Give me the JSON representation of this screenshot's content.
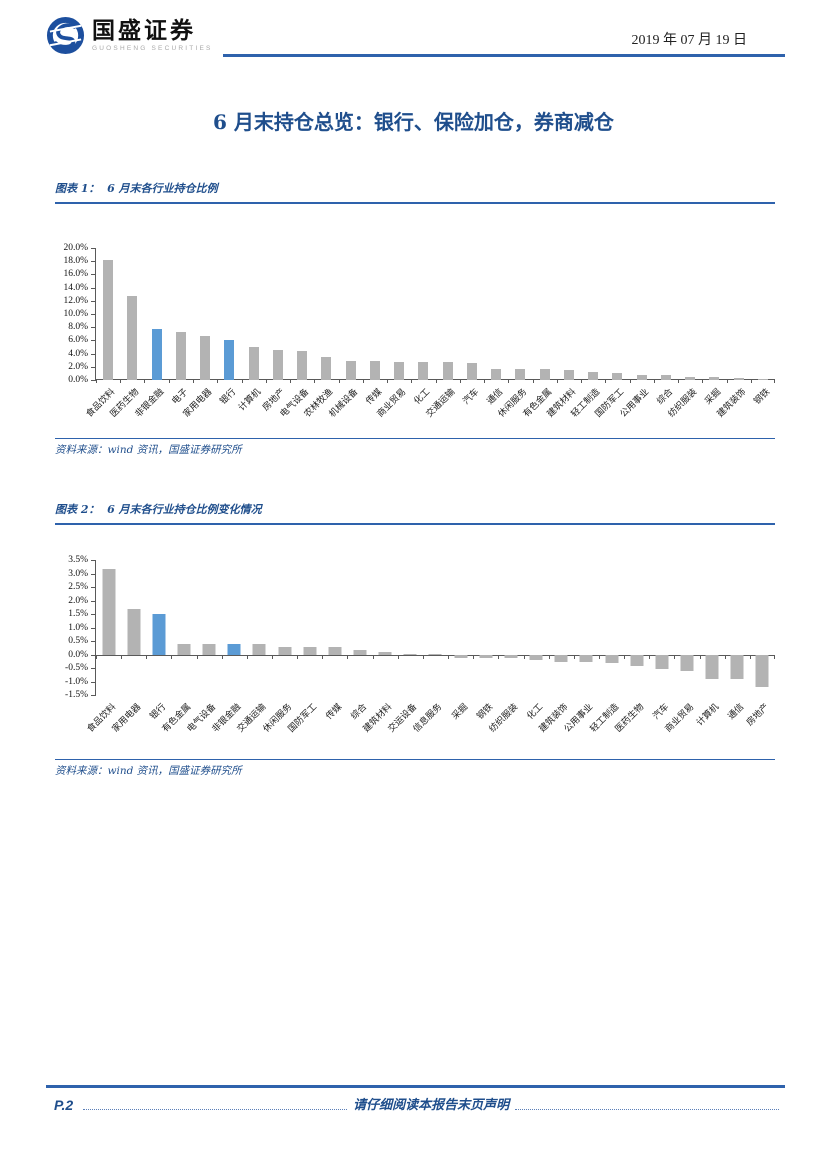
{
  "header": {
    "brand_cn": "国盛证券",
    "brand_en": "GUOSHENG SECURITIES",
    "date": "2019 年 07 月 19 日"
  },
  "title": "6 月末持仓总览：银行、保险加仓，券商减仓",
  "figure1": {
    "caption": "图表 1：  6 月末各行业持仓比例",
    "source": "资料来源：wind 资讯，国盛证券研究所"
  },
  "figure2": {
    "caption": "图表 2：  6 月末各行业持仓比例变化情况",
    "source": "资料来源：wind 资讯，国盛证券研究所"
  },
  "footer": {
    "page": "P.2",
    "disclaimer": "请仔细阅读本报告末页声明"
  },
  "colors": {
    "bar_gray": "#b3b3b3",
    "bar_blue": "#5b9bd5",
    "accent_blue": "#2e62ac",
    "text_blue": "#1f4e8c"
  },
  "chart_data": [
    {
      "type": "bar",
      "title": "6月末各行业持仓比例",
      "categories": [
        "食品饮料",
        "医药生物",
        "非银金融",
        "电子",
        "家用电器",
        "银行",
        "计算机",
        "房地产",
        "电气设备",
        "农林牧渔",
        "机械设备",
        "传媒",
        "商业贸易",
        "化工",
        "交通运输",
        "汽车",
        "通信",
        "休闲服务",
        "有色金属",
        "建筑材料",
        "轻工制造",
        "国防军工",
        "公用事业",
        "综合",
        "纺织服装",
        "采掘",
        "建筑装饰",
        "钢铁"
      ],
      "values": [
        18.2,
        12.7,
        7.8,
        7.2,
        6.7,
        6.0,
        5.0,
        4.6,
        4.4,
        3.5,
        2.9,
        2.9,
        2.8,
        2.8,
        2.7,
        2.5,
        1.7,
        1.6,
        1.6,
        1.5,
        1.2,
        1.1,
        0.8,
        0.7,
        0.5,
        0.4,
        0.3,
        0.2
      ],
      "highlight_categories": [
        "非银金融",
        "银行"
      ],
      "unit": "%",
      "ylim": [
        0,
        20
      ],
      "ytick_step": 2,
      "grid": false,
      "legend": false
    },
    {
      "type": "bar",
      "title": "6月末各行业持仓比例变化情况",
      "categories": [
        "食品饮料",
        "家用电器",
        "银行",
        "有色金属",
        "电气设备",
        "非银金融",
        "交通运输",
        "休闲服务",
        "国防军工",
        "传媒",
        "综合",
        "建筑材料",
        "交运设备",
        "信息服务",
        "采掘",
        "钢铁",
        "纺织服装",
        "化工",
        "建筑装饰",
        "公用事业",
        "轻工制造",
        "医药生物",
        "汽车",
        "商业贸易",
        "计算机",
        "通信",
        "房地产"
      ],
      "values": [
        3.2,
        1.7,
        1.5,
        0.4,
        0.4,
        0.4,
        0.4,
        0.3,
        0.3,
        0.3,
        0.2,
        0.1,
        0.05,
        0.0,
        -0.1,
        -0.1,
        -0.1,
        -0.2,
        -0.25,
        -0.25,
        -0.3,
        -0.4,
        -0.5,
        -0.6,
        -0.9,
        -0.9,
        -1.2
      ],
      "highlight_categories": [
        "银行",
        "非银金融"
      ],
      "unit": "%",
      "ylim": [
        -1.5,
        3.5
      ],
      "ytick_step": 0.5,
      "grid": false,
      "legend": false
    }
  ]
}
